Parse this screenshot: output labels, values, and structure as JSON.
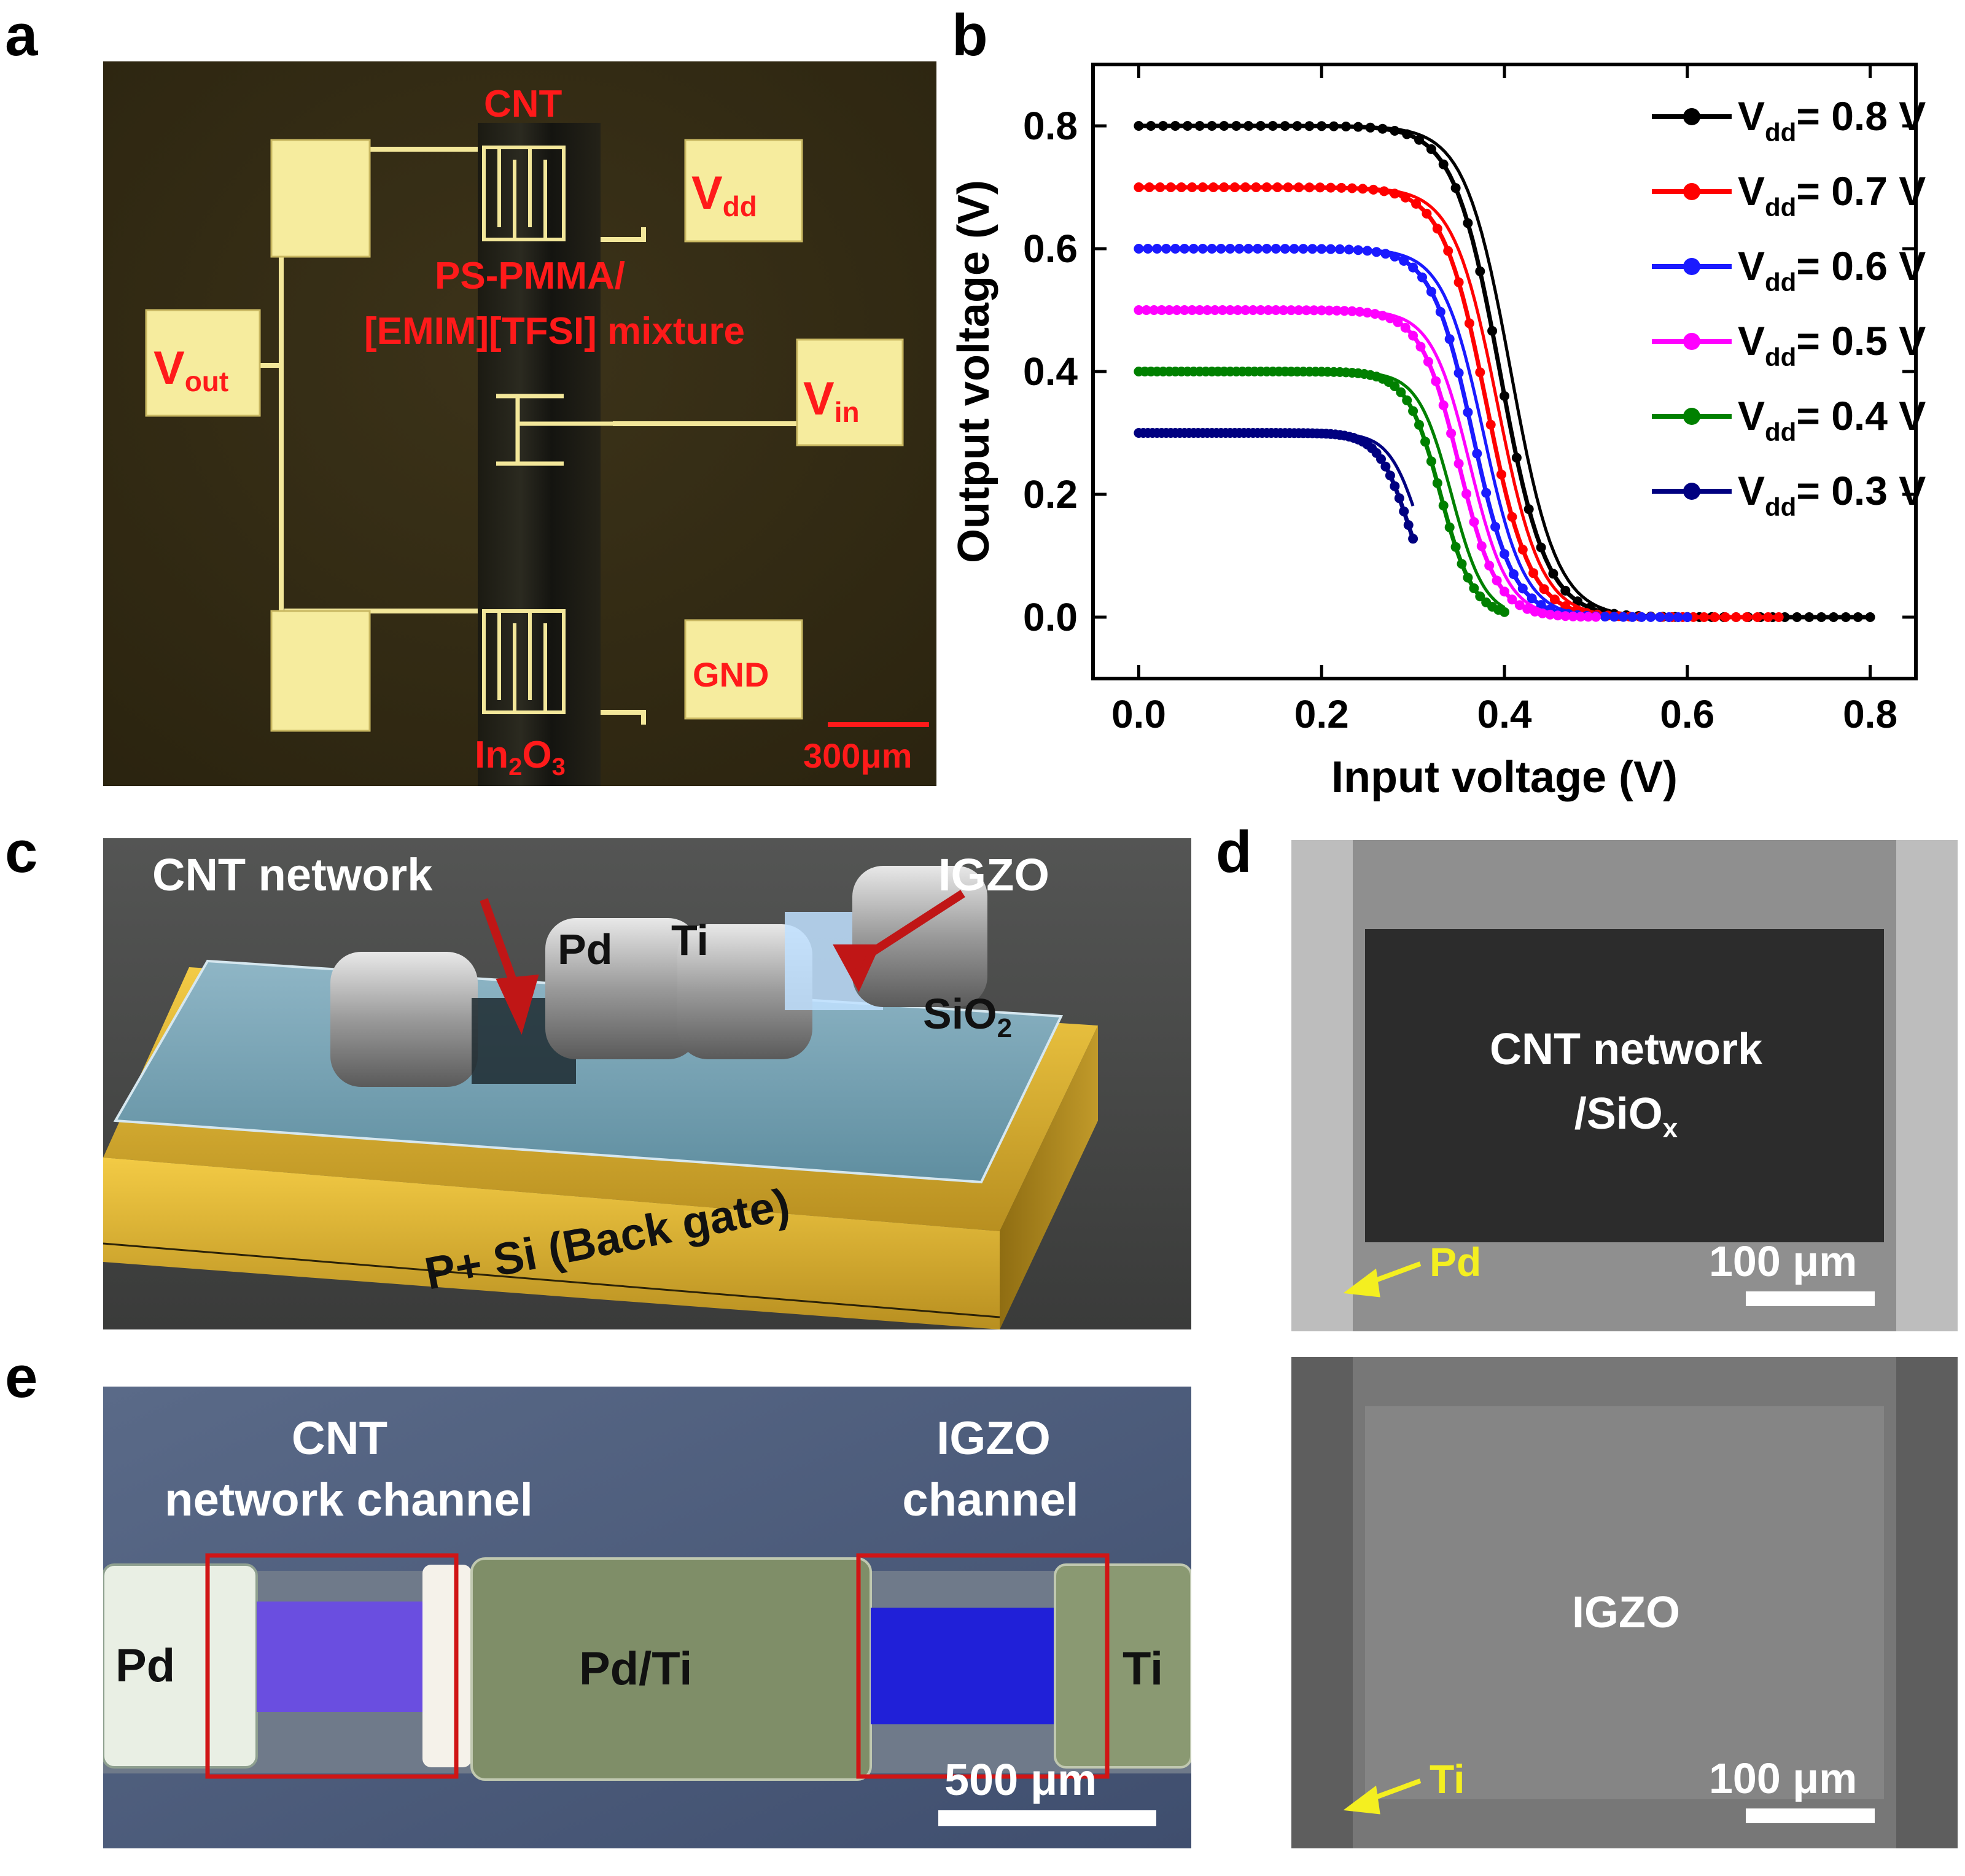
{
  "panels": {
    "a": {
      "letter": "a",
      "cnt": "CNT",
      "vdd_main": "V",
      "vdd_sub": "dd",
      "mixture_line1": "PS-PMMA/",
      "mixture_line2": "[EMIM][TFSI] mixture",
      "vout_main": "V",
      "vout_sub": "out",
      "vin_main": "V",
      "vin_sub": "in",
      "gnd": "GND",
      "in2o3_a": "In",
      "in2o3_b": "2",
      "in2o3_c": "O",
      "in2o3_d": "3",
      "scale": "300μm"
    },
    "b": {
      "letter": "b"
    },
    "c": {
      "letter": "c",
      "cnt_network": "CNT network",
      "igzo": "IGZO",
      "pd": "Pd",
      "ti": "Ti",
      "sio2_main": "SiO",
      "sio2_sub": "2",
      "substrate": "P+ Si (Back gate)"
    },
    "d": {
      "letter": "d",
      "top_line1": "CNT network",
      "top_line2_main": "/SiO",
      "top_line2_sub": "x",
      "top_pd": "Pd",
      "top_scale": "100 μm",
      "bottom_label": "IGZO",
      "bottom_ti": "Ti",
      "bottom_scale": "100 μm"
    },
    "e": {
      "letter": "e",
      "cnt_line1": "CNT",
      "cnt_line2": "network channel",
      "igzo_line1": "IGZO",
      "igzo_line2": "channel",
      "pd": "Pd",
      "pdti": "Pd/Ti",
      "ti": "Ti",
      "scale": "500 μm"
    }
  },
  "chart_data": {
    "type": "line",
    "title": "",
    "xlabel": "Input voltage (V)",
    "ylabel": "Output voltage (V)",
    "xlim": [
      -0.05,
      0.85
    ],
    "ylim": [
      -0.1,
      0.9
    ],
    "xticks": [
      "0.0",
      "0.2",
      "0.4",
      "0.6",
      "0.8"
    ],
    "yticks": [
      "0.0",
      "0.2",
      "0.4",
      "0.6",
      "0.8"
    ],
    "legend_position": "top-right",
    "series": [
      {
        "name": "Vdd = 0.8 V",
        "label_main": "V",
        "label_sub": "dd",
        "label_rest": "= 0.8 V",
        "color": "#000000",
        "vdd": 0.8,
        "vm": 0.395,
        "k": 40
      },
      {
        "name": "Vdd = 0.7 V",
        "label_main": "V",
        "label_sub": "dd",
        "label_rest": "= 0.7 V",
        "color": "#ff0000",
        "vdd": 0.7,
        "vm": 0.38,
        "k": 42
      },
      {
        "name": "Vdd = 0.6 V",
        "label_main": "V",
        "label_sub": "dd",
        "label_rest": "= 0.6 V",
        "color": "#1a1aff",
        "vdd": 0.6,
        "vm": 0.365,
        "k": 45
      },
      {
        "name": "Vdd = 0.5 V",
        "label_main": "V",
        "label_sub": "dd",
        "label_rest": "= 0.5 V",
        "color": "#ff00ff",
        "vdd": 0.5,
        "vm": 0.35,
        "k": 48
      },
      {
        "name": "Vdd = 0.4 V",
        "label_main": "V",
        "label_sub": "dd",
        "label_rest": "= 0.4 V",
        "color": "#008000",
        "vdd": 0.4,
        "vm": 0.33,
        "k": 55
      },
      {
        "name": "Vdd = 0.3 V",
        "label_main": "V",
        "label_sub": "dd",
        "label_rest": "= 0.3 V",
        "color": "#000080",
        "vdd": 0.3,
        "vm": 0.295,
        "k": 60
      }
    ]
  }
}
